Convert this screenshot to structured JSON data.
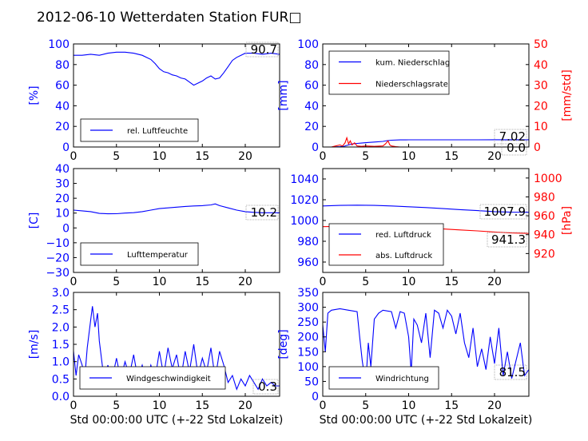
{
  "title": "2012-06-10 Wetterdaten Station FUR□",
  "colors": {
    "blue": "#0000ff",
    "red": "#ff0000",
    "black": "#000000"
  },
  "chart_data": [
    {
      "type": "line",
      "xlabel": "",
      "ylabel": "[%]",
      "xlim": [
        0,
        24
      ],
      "ylim": [
        0,
        100
      ],
      "xticks": [
        "0",
        "5",
        "10",
        "15",
        "20"
      ],
      "yticks": [
        "0",
        "20",
        "40",
        "60",
        "80",
        "100"
      ],
      "legend_position": "lower-left",
      "value_box": "90.7",
      "series": [
        {
          "name": "rel. Luftfeuchte",
          "color": "#0000ff",
          "x": [
            0,
            1,
            2,
            3,
            4,
            5,
            6,
            7,
            8,
            9,
            9.5,
            10,
            10.5,
            11,
            11.5,
            12,
            12.5,
            13,
            13.5,
            14,
            14.5,
            15,
            15.5,
            16,
            16.5,
            17,
            17.5,
            18,
            18.5,
            19,
            19.5,
            20,
            21,
            22,
            23,
            24
          ],
          "values": [
            89,
            89,
            90,
            89,
            91,
            92,
            92,
            91,
            89,
            85,
            81,
            76,
            73,
            72,
            70,
            69,
            67,
            66,
            63,
            60,
            62,
            64,
            67,
            69,
            66,
            67,
            72,
            78,
            84,
            87,
            89,
            91,
            91,
            90,
            91,
            90
          ]
        }
      ]
    },
    {
      "type": "line",
      "xlabel": "",
      "ylabel": "[mm]",
      "ylabel_right": "[mm/std]",
      "xlim": [
        0,
        24
      ],
      "ylim": [
        0,
        100
      ],
      "ylim_right": [
        0,
        50
      ],
      "xticks": [
        "0",
        "5",
        "10",
        "15",
        "20"
      ],
      "yticks": [
        "0",
        "20",
        "40",
        "60",
        "80",
        "100"
      ],
      "yticks_right": [
        "0",
        "10",
        "20",
        "30",
        "40",
        "50"
      ],
      "legend_position": "upper-left",
      "value_box": "7.02",
      "value_box_2": "0.0",
      "series": [
        {
          "name": "kum. Niederschlag",
          "color": "#0000ff",
          "x": [
            0,
            1,
            2,
            2.5,
            3,
            3.5,
            4,
            4.5,
            5,
            6,
            7,
            7.5,
            8,
            9,
            10,
            12,
            15,
            18,
            20,
            22,
            24
          ],
          "values": [
            0,
            0,
            0.3,
            0.8,
            2,
            3,
            3.5,
            3.8,
            4.2,
            4.8,
            5.4,
            6.2,
            6.6,
            6.9,
            7,
            7,
            7,
            7,
            7.02,
            7.02,
            7.02
          ]
        },
        {
          "name": "Niederschlagsrate",
          "color": "#ff0000",
          "axis": "right",
          "x": [
            0,
            1,
            1.5,
            2,
            2.3,
            2.6,
            2.8,
            3,
            3.2,
            3.4,
            3.7,
            4,
            4.5,
            5,
            6,
            7,
            7.3,
            7.6,
            7.8,
            8,
            8.5,
            9,
            10,
            12,
            15,
            20,
            24
          ],
          "values": [
            0,
            0,
            0.5,
            1,
            0.5,
            2,
            4.5,
            1.5,
            3,
            1,
            2,
            0.5,
            0.3,
            0.5,
            0.3,
            0.5,
            1.5,
            3,
            1,
            0.5,
            0.2,
            0,
            0,
            0,
            0,
            0,
            0
          ]
        }
      ]
    },
    {
      "type": "line",
      "xlabel": "",
      "ylabel": "[C]",
      "xlim": [
        0,
        24
      ],
      "ylim": [
        -30,
        40
      ],
      "xticks": [
        "0",
        "5",
        "10",
        "15",
        "20"
      ],
      "yticks": [
        "−30",
        "−20",
        "−10",
        "0",
        "10",
        "20",
        "30",
        "40"
      ],
      "legend_position": "lower-left",
      "value_box": "10.2",
      "series": [
        {
          "name": "Lufttemperatur",
          "color": "#0000ff",
          "x": [
            0,
            1,
            2,
            3,
            4,
            5,
            6,
            7,
            8,
            9,
            10,
            11,
            12,
            13,
            14,
            15,
            16,
            16.5,
            17,
            18,
            19,
            20,
            21,
            22,
            23,
            24
          ],
          "values": [
            12,
            11.5,
            11,
            9.8,
            9.5,
            9.6,
            10,
            10.3,
            11,
            12,
            13,
            13.5,
            14,
            14.5,
            14.8,
            15,
            15.5,
            16.2,
            15,
            13.5,
            12,
            11,
            10.5,
            10.2,
            10.2,
            10.2
          ]
        }
      ]
    },
    {
      "type": "line",
      "xlabel": "",
      "ylabel": "",
      "ylabel_right": "[hPa]",
      "xlim": [
        0,
        24
      ],
      "ylim": [
        950,
        1050
      ],
      "ylim_right": [
        900,
        1010
      ],
      "xticks": [
        "0",
        "5",
        "10",
        "15",
        "20"
      ],
      "yticks": [
        "960",
        "980",
        "1000",
        "1020",
        "1040"
      ],
      "yticks_right": [
        "920",
        "940",
        "960",
        "980",
        "1000"
      ],
      "legend_position": "lower-left",
      "value_box": "1007.9",
      "value_box_2": "941.3",
      "series": [
        {
          "name": "red. Luftdruck",
          "color": "#0000ff",
          "x": [
            0,
            2,
            4,
            6,
            8,
            10,
            12,
            14,
            16,
            18,
            20,
            22,
            24
          ],
          "values": [
            1014,
            1014.5,
            1014.8,
            1014.5,
            1014,
            1013.2,
            1012.5,
            1011.5,
            1010.5,
            1009.5,
            1008.5,
            1008,
            1007.9
          ]
        },
        {
          "name": "abs. Luftdruck",
          "color": "#ff0000",
          "axis": "right",
          "x": [
            0,
            2,
            4,
            6,
            8,
            10,
            12,
            14,
            16,
            18,
            20,
            22,
            24
          ],
          "values": [
            948.5,
            948.8,
            948.8,
            948.5,
            948,
            947.5,
            946.8,
            946,
            945,
            944,
            942.8,
            941.8,
            941.3
          ]
        }
      ]
    },
    {
      "type": "line",
      "xlabel": "Std 00:00:00 UTC (+-22 Std Lokalzeit)",
      "ylabel": "[m/s]",
      "xlim": [
        0,
        24
      ],
      "ylim": [
        0,
        3
      ],
      "xticks": [
        "0",
        "5",
        "10",
        "15",
        "20"
      ],
      "yticks": [
        "0.0",
        "0.5",
        "1.0",
        "1.5",
        "2.0",
        "2.5",
        "3.0"
      ],
      "legend_position": "lower-center",
      "value_box": "0.3",
      "series": [
        {
          "name": "Windgeschwindigkeit",
          "color": "#0000ff",
          "x": [
            0,
            0.3,
            0.6,
            1,
            1.3,
            1.6,
            2,
            2.2,
            2.5,
            2.8,
            3,
            3.3,
            3.6,
            4,
            4.5,
            5,
            5.5,
            6,
            6.5,
            7,
            7.5,
            8,
            8.5,
            9,
            9.5,
            10,
            10.5,
            11,
            11.5,
            12,
            12.5,
            13,
            13.5,
            14,
            14.5,
            15,
            15.5,
            16,
            16.5,
            17,
            17.5,
            18,
            18.5,
            19,
            19.5,
            20,
            20.5,
            21,
            21.5,
            22,
            22.5,
            23,
            23.5,
            24
          ],
          "values": [
            1.3,
            0.6,
            1.2,
            0.9,
            0.5,
            1.4,
            2.2,
            2.6,
            2.0,
            2.4,
            1.6,
            1.0,
            0.4,
            0.9,
            0.5,
            1.1,
            0.5,
            1.0,
            0.6,
            1.2,
            0.5,
            0.9,
            0.4,
            0.9,
            0.5,
            1.3,
            0.6,
            1.4,
            0.8,
            1.2,
            0.5,
            1.3,
            0.7,
            1.5,
            0.6,
            1.1,
            0.7,
            1.4,
            0.5,
            1.3,
            0.9,
            0.4,
            0.6,
            0.2,
            0.5,
            0.3,
            0.6,
            0.4,
            0.2,
            0.5,
            0.3,
            0.4,
            0.3,
            0.3
          ]
        }
      ]
    },
    {
      "type": "line",
      "xlabel": "Std 00:00:00 UTC (+-22 Std Lokalzeit)",
      "ylabel": "[deg]",
      "xlim": [
        0,
        24
      ],
      "ylim": [
        0,
        350
      ],
      "xticks": [
        "0",
        "5",
        "10",
        "15",
        "20"
      ],
      "yticks": [
        "0",
        "50",
        "100",
        "150",
        "200",
        "250",
        "300",
        "350"
      ],
      "legend_position": "lower-left",
      "value_box": "81.5",
      "series": [
        {
          "name": "Windrichtung",
          "color": "#0000ff",
          "x": [
            0,
            0.3,
            0.6,
            1,
            2,
            3,
            4,
            4.3,
            4.6,
            5,
            5.3,
            5.6,
            6,
            6.5,
            7,
            8,
            8.5,
            9,
            9.5,
            10,
            10.3,
            10.6,
            11,
            11.5,
            12,
            12.5,
            13,
            13.5,
            14,
            14.5,
            15,
            15.5,
            16,
            16.5,
            17,
            17.5,
            18,
            18.5,
            19,
            19.5,
            20,
            20.5,
            21,
            21.5,
            22,
            22.5,
            23,
            23.5,
            24
          ],
          "values": [
            240,
            150,
            280,
            290,
            295,
            290,
            285,
            200,
            120,
            40,
            180,
            100,
            260,
            280,
            290,
            285,
            230,
            285,
            280,
            200,
            80,
            260,
            240,
            180,
            280,
            130,
            290,
            280,
            230,
            290,
            270,
            210,
            280,
            180,
            130,
            230,
            100,
            160,
            90,
            200,
            110,
            230,
            70,
            150,
            60,
            120,
            180,
            70,
            90
          ]
        }
      ]
    }
  ]
}
